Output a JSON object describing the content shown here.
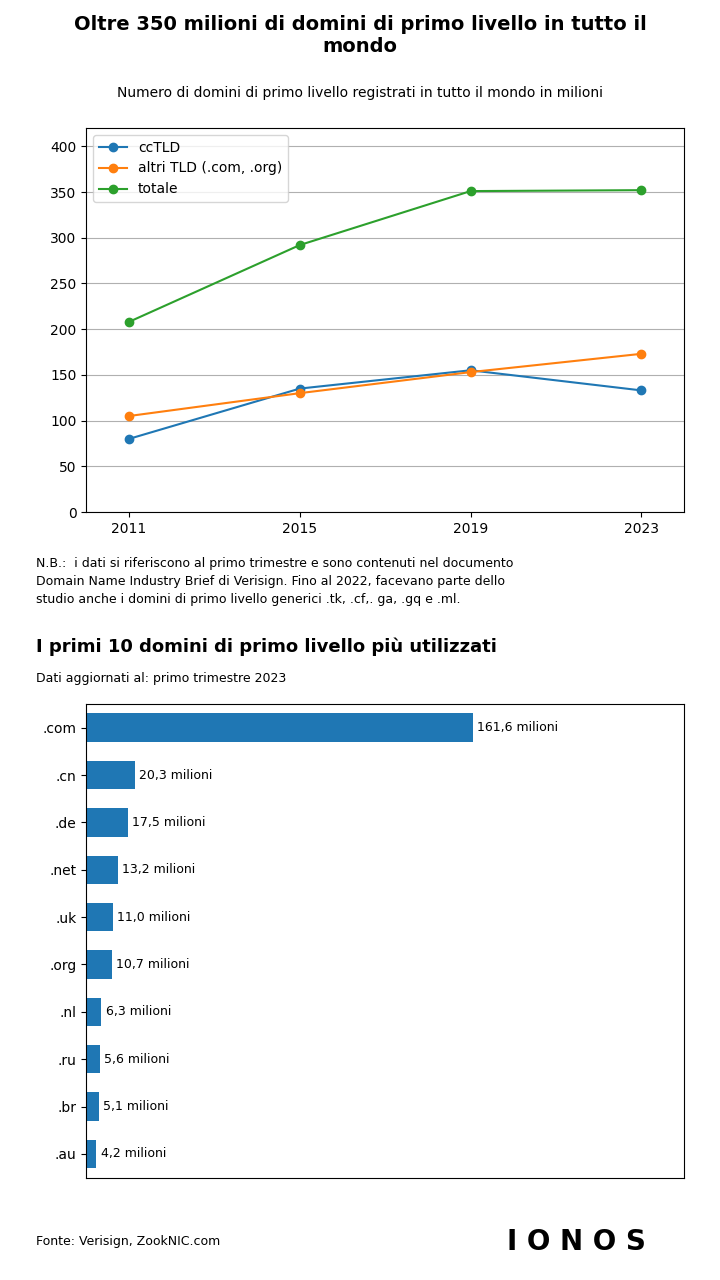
{
  "chart_data": [
    {
      "type": "line",
      "title": "Oltre 350 milioni di domini di primo livello in tutto il\nmondo",
      "subtitle": "Numero di domini di primo livello registrati in tutto il mondo in milioni",
      "x": [
        2011,
        2015,
        2019,
        2023
      ],
      "series": [
        {
          "name": "ccTLD",
          "values": [
            80,
            135,
            155,
            133
          ]
        },
        {
          "name": "altri TLD (.com, .org)",
          "values": [
            105,
            130,
            153,
            173
          ]
        },
        {
          "name": "totale",
          "values": [
            208,
            292,
            351,
            352
          ]
        }
      ],
      "marker": "o",
      "xlim": [
        2010,
        2024
      ],
      "xticks": [
        2011,
        2015,
        2019,
        2023
      ],
      "ylim": [
        0,
        420
      ],
      "yticks": [
        0,
        50,
        100,
        150,
        200,
        250,
        300,
        350,
        400
      ],
      "grid": true,
      "legend": "upper left",
      "annotations": [
        "N.B.:  i dati si riferiscono al primo trimestre e sono contenuti nel documento\nDomain Name Industry Brief di Verisign. Fino al 2022, facevano parte dello\nstudio anche i domini di primo livello generici .tk, .cf,. ga, .gq e .ml."
      ]
    },
    {
      "type": "bar",
      "orientation": "horizontal",
      "title": "I primi 10 domini di primo livello più utilizzati",
      "subtitle": "Dati aggiornati al: primo trimestre 2023",
      "categories": [
        ".com",
        ".cn",
        ".de",
        ".net",
        ".uk",
        ".org",
        ".nl",
        ".ru",
        ".br",
        ".au"
      ],
      "values": [
        161.6,
        20.3,
        17.5,
        13.2,
        11.0,
        10.7,
        6.3,
        5.6,
        5.1,
        4.2
      ],
      "value_labels": [
        "161,6 milioni",
        "20,3 milioni",
        "17,5 milioni",
        "13,2 milioni",
        "11,0 milioni",
        "10,7 milioni",
        "6,3 milioni",
        "5,6 milioni",
        "5,1 milioni",
        "4,2 milioni"
      ],
      "data_labels": true,
      "xlim": [
        0,
        250
      ],
      "grid": false,
      "tick_labels": "y",
      "annotations": [
        "Fonte: Verisign, ZookNIC.com",
        "I O N O S"
      ]
    }
  ]
}
